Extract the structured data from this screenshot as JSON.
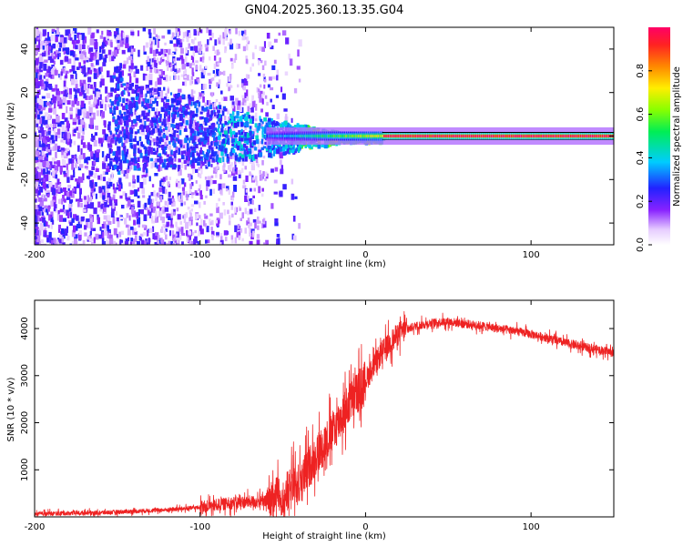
{
  "title": "GN04.2025.360.13.35.G04",
  "chart_data": [
    {
      "type": "heatmap",
      "xlabel": "Height of straight line (km)",
      "ylabel": "Frequency (Hz)",
      "xlim": [
        -200,
        150
      ],
      "ylim": [
        -50,
        50
      ],
      "xticks": [
        -200,
        -100,
        0,
        100
      ],
      "xtick_labels": [
        "-200",
        "-100",
        "0",
        "100"
      ],
      "yticks": [
        -40,
        -20,
        0,
        20,
        40
      ],
      "ytick_labels": [
        "-40",
        "-20",
        "0",
        "20",
        "40"
      ],
      "colorbar": {
        "label": "Normalized spectral amplitude",
        "range": [
          0,
          1
        ],
        "ticks": [
          0,
          0.2,
          0.4,
          0.6,
          0.8
        ],
        "tick_labels": [
          "0.0",
          "0.2",
          "0.4",
          "0.6",
          "0.8"
        ]
      },
      "features": [
        {
          "height_range": [
            -200,
            -120
          ],
          "frequency": "broadband -50..50",
          "amplitude": 0.15
        },
        {
          "height_range": [
            -150,
            -60
          ],
          "frequency_center": 5,
          "amplitude": 0.3
        },
        {
          "height_range": [
            -60,
            10
          ],
          "frequency_center": 0,
          "amplitude": 0.5
        },
        {
          "height_range": [
            10,
            150
          ],
          "frequency_center": 0,
          "amplitude": 0.95
        }
      ]
    },
    {
      "type": "line",
      "xlabel": "Height of straight line (km)",
      "ylabel": "SNR (10 * v/v)",
      "xlim": [
        -200,
        150
      ],
      "ylim": [
        0,
        4600
      ],
      "xticks": [
        -200,
        -100,
        0,
        100
      ],
      "xtick_labels": [
        "-200",
        "-100",
        "0",
        "100"
      ],
      "yticks": [
        1000,
        2000,
        3000,
        4000
      ],
      "ytick_labels": [
        "1000",
        "2000",
        "3000",
        "4000"
      ],
      "color": "#ee2222",
      "series": [
        {
          "name": "SNR",
          "x": [
            -200,
            -180,
            -160,
            -140,
            -120,
            -100,
            -90,
            -80,
            -70,
            -60,
            -50,
            -40,
            -30,
            -20,
            -10,
            0,
            10,
            20,
            30,
            40,
            50,
            60,
            70,
            80,
            90,
            100,
            110,
            120,
            130,
            140,
            150
          ],
          "y": [
            60,
            80,
            90,
            120,
            150,
            200,
            250,
            300,
            320,
            330,
            450,
            700,
            1300,
            1800,
            2400,
            2900,
            3500,
            3900,
            4050,
            4120,
            4150,
            4100,
            4060,
            4000,
            3950,
            3880,
            3800,
            3700,
            3620,
            3560,
            3480
          ]
        }
      ]
    }
  ]
}
